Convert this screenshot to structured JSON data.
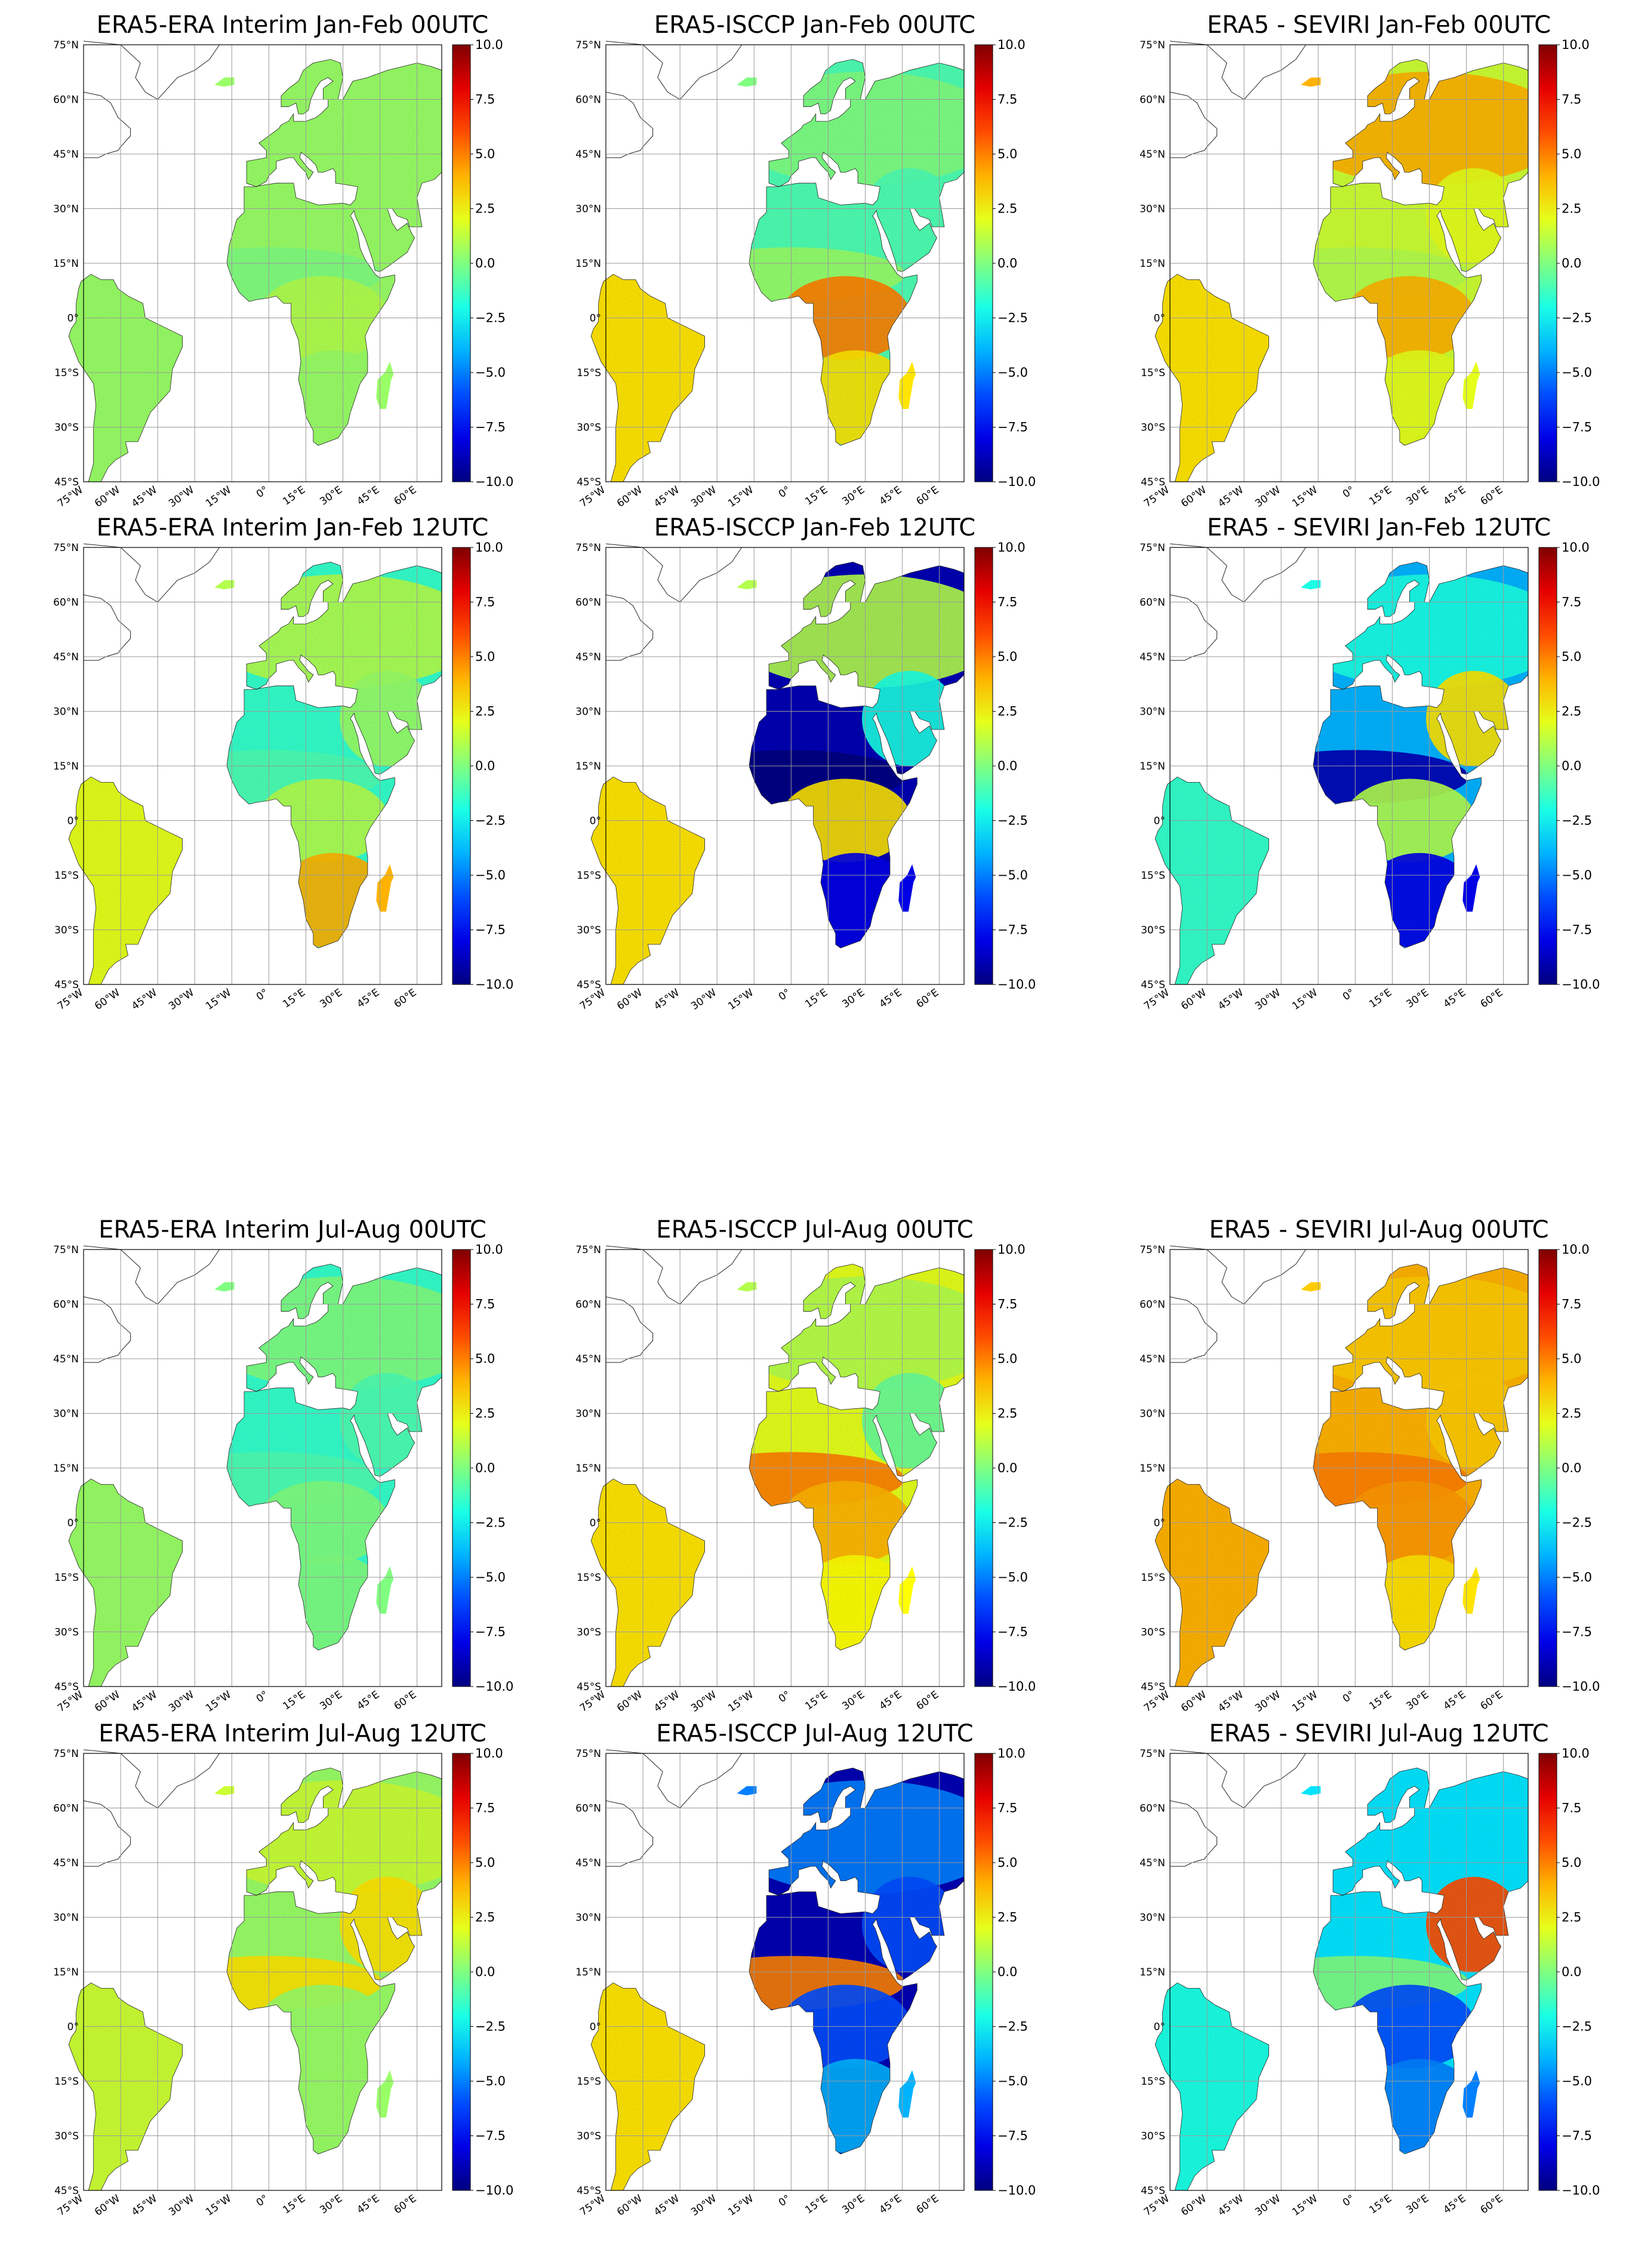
{
  "figure": {
    "colormap": "jet",
    "colorbar": {
      "vmin": -10.0,
      "vmax": 10.0,
      "tick_labels": [
        "10.0",
        "7.5",
        "5.0",
        "2.5",
        "0.0",
        "−2.5",
        "−5.0",
        "−7.5",
        "−10.0"
      ]
    },
    "lat_tick_labels": [
      "75°N",
      "60°N",
      "45°N",
      "30°N",
      "15°N",
      "0°",
      "15°S",
      "30°S",
      "45°S"
    ],
    "lon_tick_labels": [
      "75°W",
      "60°W",
      "45°W",
      "30°W",
      "15°W",
      "0°",
      "15°E",
      "30°E",
      "45°E",
      "60°E"
    ],
    "lat_range": [
      -45,
      75
    ],
    "lon_range": [
      -75,
      70
    ],
    "grid": true,
    "colors": {
      "ocean": "#ffffff",
      "coastline": "#222222",
      "gridline": "#9a9a9a"
    }
  },
  "chart_data": [
    {
      "type": "heatmap",
      "title": "ERA5-ERA Interim Jan-Feb  00UTC",
      "regions": {
        "west_africa": 0.0,
        "sahara": 0.5,
        "central_africa": 1.0,
        "southern_africa": 0.5,
        "europe": 0.5,
        "middle_east": 0.5,
        "south_america": 0.5
      }
    },
    {
      "type": "heatmap",
      "title": "ERA5-ISCCP Jan-Feb  00UTC",
      "regions": {
        "west_africa": 0.5,
        "sahara": -1.0,
        "central_africa": 5.0,
        "southern_africa": 3.0,
        "europe": 0.0,
        "middle_east": -1.0,
        "south_america": 3.0
      }
    },
    {
      "type": "heatmap",
      "title": "ERA5 - SEVIRI Jan-Feb  00UTC",
      "regions": {
        "west_africa": 1.0,
        "sahara": 1.5,
        "central_africa": 4.0,
        "southern_africa": 2.0,
        "europe": 4.0,
        "middle_east": 2.0,
        "south_america": 3.0
      }
    },
    {
      "type": "heatmap",
      "title": "ERA5-ERA Interim Jan-Feb  12UTC",
      "regions": {
        "west_africa": -1.0,
        "sahara": -1.5,
        "central_africa": 1.0,
        "southern_africa": 4.0,
        "europe": 1.0,
        "middle_east": 0.5,
        "south_america": 2.0
      }
    },
    {
      "type": "heatmap",
      "title": "ERA5-ISCCP Jan-Feb  12UTC",
      "regions": {
        "west_africa": -10.0,
        "sahara": -9.0,
        "central_africa": 3.0,
        "southern_africa": -8.0,
        "europe": 1.0,
        "middle_east": -2.0,
        "south_america": 3.0
      }
    },
    {
      "type": "heatmap",
      "title": "ERA5 - SEVIRI Jan-Feb  12UTC",
      "regions": {
        "west_africa": -9.0,
        "sahara": -4.0,
        "central_africa": 1.0,
        "southern_africa": -8.0,
        "europe": -2.0,
        "middle_east": 3.0,
        "south_america": -1.5
      }
    },
    {
      "type": "heatmap",
      "title": "ERA5-ERA Interim Jul-Aug  00UTC",
      "regions": {
        "west_africa": -1.0,
        "sahara": -1.5,
        "central_africa": 0.0,
        "southern_africa": 0.0,
        "europe": 0.0,
        "middle_east": -1.0,
        "south_america": 0.5
      }
    },
    {
      "type": "heatmap",
      "title": "ERA5-ISCCP Jul-Aug  00UTC",
      "regions": {
        "west_africa": 5.0,
        "sahara": 2.0,
        "central_africa": 4.0,
        "southern_africa": 2.5,
        "europe": 1.0,
        "middle_east": -0.5,
        "south_america": 3.0
      }
    },
    {
      "type": "heatmap",
      "title": "ERA5 - SEVIRI Jul-Aug  00UTC",
      "regions": {
        "west_africa": 5.0,
        "sahara": 4.0,
        "central_africa": 4.5,
        "southern_africa": 3.0,
        "europe": 3.5,
        "middle_east": 3.5,
        "south_america": 4.0
      }
    },
    {
      "type": "heatmap",
      "title": "ERA5-ERA Interim Jul-Aug  12UTC",
      "regions": {
        "west_africa": 3.0,
        "sahara": 0.5,
        "central_africa": 0.5,
        "southern_africa": 0.5,
        "europe": 1.5,
        "middle_east": 3.0,
        "south_america": 1.5
      }
    },
    {
      "type": "heatmap",
      "title": "ERA5-ISCCP Jul-Aug  12UTC",
      "regions": {
        "west_africa": 5.0,
        "sahara": -9.0,
        "central_africa": -6.0,
        "southern_africa": -4.0,
        "europe": -5.0,
        "middle_east": -6.0,
        "south_america": 3.0
      }
    },
    {
      "type": "heatmap",
      "title": "ERA5 - SEVIRI Jul-Aug  12UTC",
      "regions": {
        "west_africa": 0.0,
        "sahara": -3.0,
        "central_africa": -6.0,
        "southern_africa": -5.0,
        "europe": -3.0,
        "middle_east": 6.0,
        "south_america": -2.0
      }
    }
  ]
}
